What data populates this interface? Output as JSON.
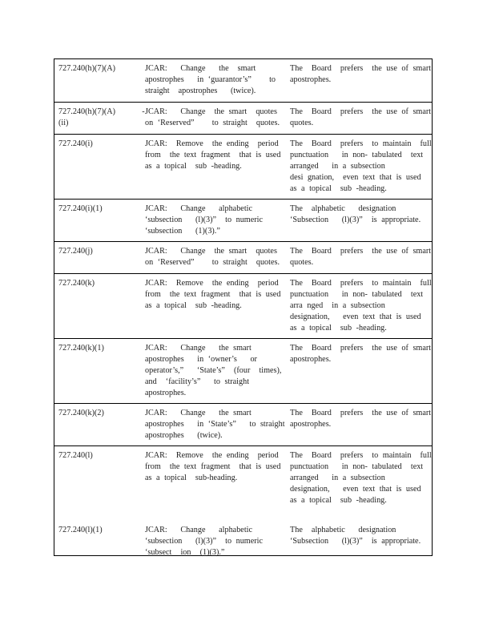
{
  "rows": [
    {
      "section": [
        "727.240(h)(7)(A)"
      ],
      "change": [
        "JCAR:   Change   the  smart",
        "apostrophes   in ‘guarantor’s”    to",
        "straight  apostrophes   (twice)."
      ],
      "response": [
        "The  Board  prefers  the use of smart",
        "apostrophes."
      ]
    },
    {
      "section": [
        "727.240(h)(7)(A)      -",
        "(ii)"
      ],
      "change": [
        "JCAR:   Change  the smart  quotes",
        "on ‘Reserved”    to straight  quotes."
      ],
      "response": [
        "The  Board  prefers  the use of smart",
        "quotes."
      ]
    },
    {
      "section": [
        "727.240(i)"
      ],
      "change": [
        "JCAR:  Remove  the ending  period",
        "from  the text fragment  that is used",
        "as a topical  sub -heading."
      ],
      "response": [
        "The  Board  prefers  to maintain  full",
        "punctuation   in non- tabulated  text",
        "arranged   in a subsection",
        "desi gnation,  even text that is used",
        "as a topical  sub -heading."
      ]
    },
    {
      "section": [
        "727.240(i)(1)"
      ],
      "change": [
        "JCAR:   Change   alphabetic",
        "‘subsection   (l)(3)”  to numeric",
        "‘subsection   (1)(3).”"
      ],
      "response": [
        "The  alphabetic   designation",
        "‘Subsection   (l)(3)”  is appropriate."
      ]
    },
    {
      "section": [
        "727.240(j)"
      ],
      "change": [
        "JCAR:   Change  the smart  quotes",
        "on ‘Reserved”    to straight  quotes."
      ],
      "response": [
        "The  Board  prefers  the use of smart",
        "quotes."
      ]
    },
    {
      "section": [
        "727.240(k)"
      ],
      "change": [
        "JCAR:  Remove  the ending  period",
        "from  the text fragment  that is used",
        "as a topical  sub -heading."
      ],
      "response": [
        "The  Board  prefers  to maintain  full",
        "punctuation   in non- tabulated  text",
        "arra nged  in a subsection",
        "designation,   even text that is used",
        "as a topical  sub -heading."
      ]
    },
    {
      "section": [
        "727.240(k)(1)"
      ],
      "change": [
        "JCAR:   Change   the smart",
        "apostrophes   in ‘owner’s   or",
        "operator’s,”   ‘State’s”  (four  times),",
        "and  ‘facility’s”   to straight",
        "apostrophes."
      ],
      "response": [
        "The  Board  prefers  the use of smart",
        "apostrophes."
      ]
    },
    {
      "section": [
        "727.240(k)(2)"
      ],
      "change": [
        "JCAR:   Change   the smart",
        "apostrophes   in ‘State’s”   to straight",
        "apostrophes   (twice)."
      ],
      "response": [
        "The  Board  prefers  the use of smart",
        "apostrophes."
      ]
    },
    {
      "section": [
        "727.240(l)"
      ],
      "change": [
        "JCAR:  Remove  the ending  period",
        "from  the text fragment  that is used",
        "as a topical  sub-heading."
      ],
      "response": [
        "The  Board  prefers  to maintain  full",
        "punctuation   in non- tabulated  text",
        "arranged   in a subsection",
        "designation,   even text that is used",
        "as a topical  sub -heading."
      ]
    },
    {
      "section": [
        "727.240(l)(1)"
      ],
      "change": [
        "JCAR:   Change   alphabetic",
        "‘subsection   (l)(3)”  to numeric",
        "‘subsect  ion  (1)(3).”"
      ],
      "response": [
        "The  alphabetic   designation",
        "‘Subsection   (l)(3)”  is appropriate."
      ]
    }
  ]
}
